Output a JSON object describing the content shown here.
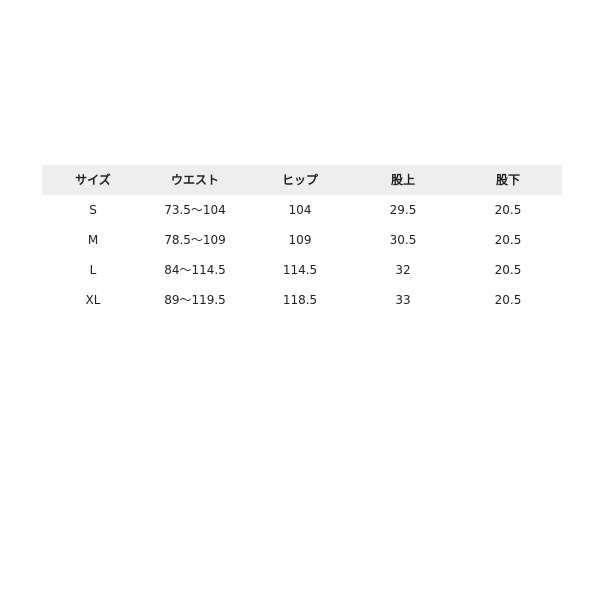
{
  "table": {
    "headers": [
      "サイズ",
      "ウエスト",
      "ヒップ",
      "股上",
      "股下"
    ],
    "rows": [
      [
        "S",
        "73.5～104",
        "104",
        "29.5",
        "20.5"
      ],
      [
        "M",
        "78.5～109",
        "109",
        "30.5",
        "20.5"
      ],
      [
        "L",
        "84～114.5",
        "114.5",
        "32",
        "20.5"
      ],
      [
        "XL",
        "89～119.5",
        "118.5",
        "33",
        "20.5"
      ]
    ]
  }
}
